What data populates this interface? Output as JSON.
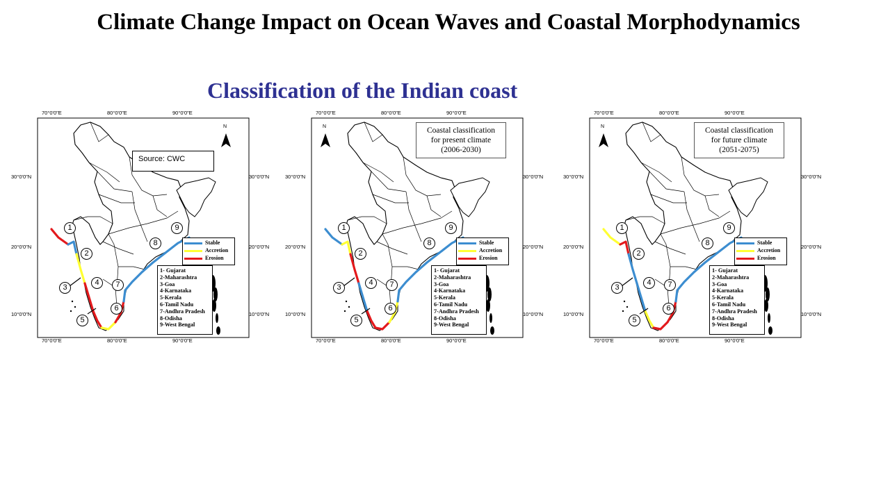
{
  "slide": {
    "title": "Climate Change Impact on Ocean Waves and Coastal Morphodynamics",
    "subtitle": "Classification of the Indian coast"
  },
  "axis_labels": {
    "lon": [
      "70°0'0\"E",
      "80°0'0\"E",
      "90°0'0\"E"
    ],
    "lat": [
      "30°0'0\"N",
      "20°0'0\"N",
      "10°0'0\"N"
    ]
  },
  "north_label": "N",
  "legend": [
    {
      "label": "Stable",
      "color": "#3c8dd0"
    },
    {
      "label": "Accretion",
      "color": "#ffff33"
    },
    {
      "label": "Erosion",
      "color": "#e3191c"
    }
  ],
  "states": [
    "1- Gujarat",
    "2-Maharashtra",
    "3-Goa",
    "4-Karnataka",
    "5-Kerala",
    "6-Tamil  Nadu",
    "7-Andhra  Pradesh",
    "8-Odisha",
    "9-West Bengal"
  ],
  "region_numbers": [
    "1",
    "2",
    "3",
    "4",
    "5",
    "6",
    "7",
    "8",
    "9"
  ],
  "maps": [
    {
      "source": "Source: CWC",
      "coast": [
        "#e3191c",
        "#3c8dd0",
        "#ffff33",
        "#e3191c",
        "#e3191c",
        "#ffff33",
        "#e3191c",
        "#3c8dd0"
      ]
    },
    {
      "box_lines": [
        "Coastal classification",
        "for present climate",
        "(2006-2030)"
      ],
      "coast": [
        "#3c8dd0",
        "#ffff33",
        "#e3191c",
        "#3c8dd0",
        "#e3191c",
        "#e3191c",
        "#ffff33",
        "#3c8dd0"
      ]
    },
    {
      "box_lines": [
        "Coastal classification",
        "for future climate",
        "(2051-2075)"
      ],
      "coast": [
        "#ffff33",
        "#e3191c",
        "#3c8dd0",
        "#3c8dd0",
        "#ffff33",
        "#e3191c",
        "#e3191c",
        "#3c8dd0"
      ]
    }
  ]
}
